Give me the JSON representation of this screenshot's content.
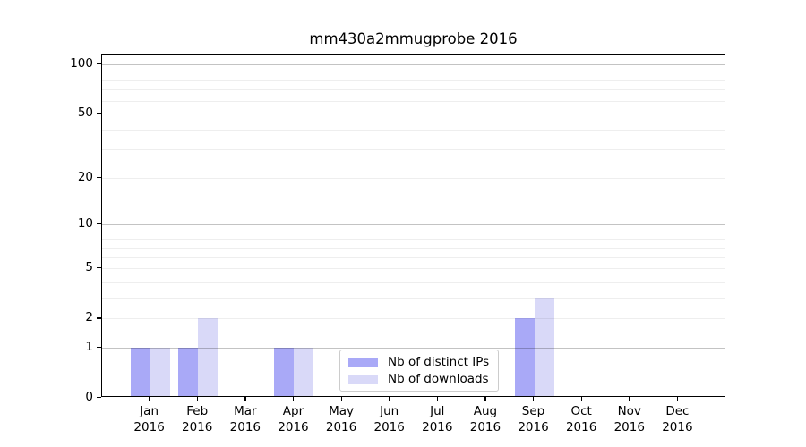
{
  "title": "mm430a2mmugprobe 2016",
  "chart_data": {
    "type": "bar",
    "title": "mm430a2mmugprobe 2016",
    "categories": [
      "Jan",
      "Feb",
      "Mar",
      "Apr",
      "May",
      "Jun",
      "Jul",
      "Aug",
      "Sep",
      "Oct",
      "Nov",
      "Dec"
    ],
    "category_year": "2016",
    "series": [
      {
        "name": "Nb of distinct IPs",
        "color": "#a9a9f7",
        "values": [
          1,
          1,
          0,
          1,
          0,
          0,
          0,
          0,
          2,
          0,
          0,
          0
        ]
      },
      {
        "name": "Nb of downloads",
        "color": "#d9d9f8",
        "values": [
          1,
          2,
          0,
          1,
          0,
          0,
          0,
          0,
          3,
          0,
          0,
          0
        ]
      }
    ],
    "y_axis": {
      "scale": "log1p",
      "ylim": [
        0,
        100
      ],
      "tick_labels": [
        "0",
        "1",
        "2",
        "5",
        "10",
        "20",
        "50",
        "100"
      ],
      "tick_values": [
        0,
        1,
        2,
        5,
        10,
        20,
        50,
        100
      ],
      "major_gridlines": [
        1,
        10,
        100
      ],
      "minor_gridlines": [
        2,
        3,
        4,
        5,
        6,
        7,
        8,
        9,
        20,
        30,
        40,
        50,
        60,
        70,
        80,
        90
      ]
    },
    "legend": {
      "position": "lower center",
      "entries": [
        "Nb of distinct IPs",
        "Nb of downloads"
      ]
    },
    "grid": true
  },
  "colors": {
    "distinct_ips": "#a9a9f7",
    "downloads": "#d9d9f8",
    "axis": "#000000",
    "legend_border": "#cccccc",
    "background": "#ffffff"
  }
}
